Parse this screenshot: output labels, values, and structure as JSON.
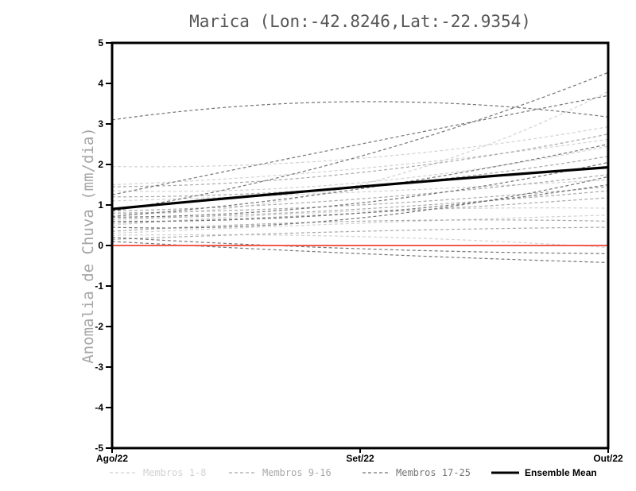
{
  "title": "Marica (Lon:-42.8246,Lat:-22.9354)",
  "y_axis_label": "Anomalia de Chuva (mm/dia)",
  "legend": {
    "items": [
      {
        "label": "Membros 1-8",
        "color": "#d2d2d2",
        "style": "dashed"
      },
      {
        "label": "Membros 9-16",
        "color": "#a9a9a9",
        "style": "dashed"
      },
      {
        "label": "Membros 17-25",
        "color": "#757575",
        "style": "dashed"
      },
      {
        "label": "Ensemble Mean",
        "color": "#000000",
        "style": "solid"
      }
    ]
  },
  "chart_data": {
    "type": "line",
    "title": "Marica (Lon:-42.8246,Lat:-22.9354)",
    "xlabel": "",
    "ylabel": "Anomalia de Chuva (mm/dia)",
    "x": [
      "Ago/22",
      "Set/22",
      "Out/22"
    ],
    "ylim": [
      -5,
      5
    ],
    "y_ticks": [
      5,
      4,
      3,
      2,
      1,
      0,
      -1,
      -2,
      -3,
      -4,
      -5
    ],
    "grid": false,
    "legend_position": "bottom",
    "axis_color": "#000000",
    "zero_line": {
      "name": "zero-reference",
      "color": "#f15a4f",
      "width": 2,
      "values": [
        0,
        0,
        0
      ]
    },
    "ensemble_mean": {
      "name": "Ensemble Mean",
      "color": "#000000",
      "width": 3.2,
      "values": [
        0.9,
        1.45,
        1.93
      ]
    },
    "member_groups": [
      {
        "name": "Membros 1-8",
        "color": "#d2d2d2",
        "series": [
          [
            1.95,
            2.15,
            2.93
          ],
          [
            1.5,
            1.9,
            2.62
          ],
          [
            1.35,
            1.55,
            2.45
          ],
          [
            1.1,
            1.32,
            1.62
          ],
          [
            0.78,
            1.5,
            3.8
          ],
          [
            0.5,
            0.85,
            0.92
          ],
          [
            0.3,
            0.55,
            0.75
          ],
          [
            0.25,
            0.22,
            -0.05
          ]
        ]
      },
      {
        "name": "Membros 9-16",
        "color": "#a9a9a9",
        "series": [
          [
            1.45,
            1.8,
            2.75
          ],
          [
            1.2,
            1.45,
            2.2
          ],
          [
            0.85,
            1.15,
            1.75
          ],
          [
            0.8,
            1.0,
            1.45
          ],
          [
            0.65,
            0.9,
            1.35
          ],
          [
            0.55,
            0.8,
            1.18
          ],
          [
            0.35,
            0.6,
            0.6
          ],
          [
            0.15,
            0.35,
            0.45
          ]
        ]
      },
      {
        "name": "Membros 17-25",
        "color": "#757575",
        "series": [
          [
            3.1,
            3.55,
            3.17
          ],
          [
            1.25,
            2.5,
            3.7
          ],
          [
            0.85,
            2.2,
            4.27
          ],
          [
            0.72,
            1.4,
            2.5
          ],
          [
            0.7,
            1.05,
            2.05
          ],
          [
            0.6,
            0.8,
            1.5
          ],
          [
            0.45,
            0.68,
            1.7
          ],
          [
            0.2,
            -0.08,
            -0.2
          ],
          [
            0.1,
            -0.2,
            -0.42
          ]
        ]
      }
    ]
  }
}
